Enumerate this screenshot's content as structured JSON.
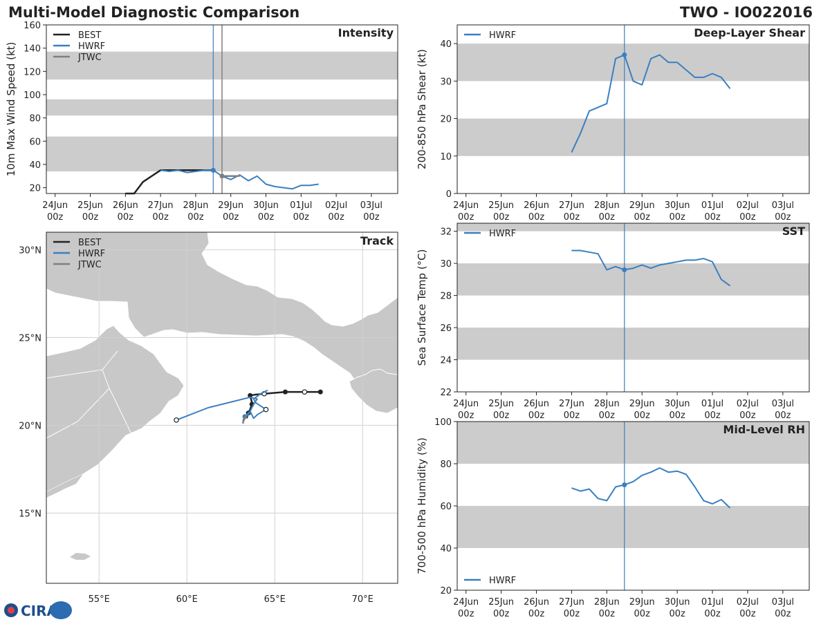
{
  "header": {
    "title": "Multi-Model Diagnostic Comparison",
    "storm_id": "TWO - IO022016"
  },
  "logo_text": "CIRA",
  "colors": {
    "best": "#222222",
    "hwrf": "#3a7fbf",
    "jtwc": "#7f7f7f",
    "band": "#cccccc",
    "land": "#c8c8c8"
  },
  "time_axis": {
    "ticks": [
      {
        "day": 0,
        "top": "24Jun",
        "bottom": "00z"
      },
      {
        "day": 1,
        "top": "25Jun",
        "bottom": "00z"
      },
      {
        "day": 2,
        "top": "26Jun",
        "bottom": "00z"
      },
      {
        "day": 3,
        "top": "27Jun",
        "bottom": "00z"
      },
      {
        "day": 4,
        "top": "28Jun",
        "bottom": "00z"
      },
      {
        "day": 5,
        "top": "29Jun",
        "bottom": "00z"
      },
      {
        "day": 6,
        "top": "30Jun",
        "bottom": "00z"
      },
      {
        "day": 7,
        "top": "01Jul",
        "bottom": "00z"
      },
      {
        "day": 8,
        "top": "02Jul",
        "bottom": "00z"
      },
      {
        "day": 9,
        "top": "03Jul",
        "bottom": "00z"
      }
    ],
    "range_days": [
      -0.25,
      9.75
    ],
    "current_time_day": 4.5,
    "jtwc_time_day": 4.75
  },
  "chart_data": [
    {
      "id": "intensity",
      "type": "line",
      "title": "Intensity",
      "ylabel": "10m Max Wind Speed (kt)",
      "ylim": [
        15,
        160
      ],
      "yticks": [
        20,
        40,
        60,
        80,
        100,
        120,
        140,
        160
      ],
      "bands": [
        [
          34,
          64
        ],
        [
          82,
          96
        ],
        [
          113,
          137
        ]
      ],
      "legend": [
        "BEST",
        "HWRF",
        "JTWC"
      ],
      "series": [
        {
          "name": "BEST",
          "color": "#222222",
          "width": 2.5,
          "x": [
            2.0,
            2.25,
            2.5,
            3.0,
            3.5,
            4.0,
            4.5
          ],
          "y": [
            15,
            15,
            25,
            35,
            35,
            35,
            35
          ]
        },
        {
          "name": "HWRF",
          "color": "#3a7fbf",
          "width": 2,
          "x": [
            3.0,
            3.25,
            3.5,
            3.75,
            4.0,
            4.25,
            4.5,
            4.75,
            5.0,
            5.25,
            5.5,
            5.75,
            6.0,
            6.25,
            6.5,
            6.75,
            7.0,
            7.25,
            7.5
          ],
          "y": [
            35,
            34,
            35,
            33,
            34,
            35,
            35,
            30,
            27,
            31,
            26,
            30,
            23,
            21,
            20,
            19,
            22,
            22,
            23
          ],
          "marker": [
            4.5,
            35
          ]
        },
        {
          "name": "JTWC",
          "color": "#7f7f7f",
          "width": 2.5,
          "x": [
            4.75,
            5.0,
            5.25
          ],
          "y": [
            30,
            30,
            30
          ],
          "marker": [
            4.75,
            30
          ]
        }
      ]
    },
    {
      "id": "shear",
      "type": "line",
      "title": "Deep-Layer Shear",
      "ylabel": "200-850 hPa Shear (kt)",
      "ylim": [
        0,
        45
      ],
      "yticks": [
        0,
        10,
        20,
        30,
        40
      ],
      "bands": [
        [
          10,
          20
        ],
        [
          30,
          40
        ]
      ],
      "legend": [
        "HWRF"
      ],
      "series": [
        {
          "name": "HWRF",
          "color": "#3a7fbf",
          "width": 2,
          "x": [
            3.0,
            3.25,
            3.5,
            3.75,
            4.0,
            4.25,
            4.5,
            4.75,
            5.0,
            5.25,
            5.5,
            5.75,
            6.0,
            6.25,
            6.5,
            6.75,
            7.0,
            7.25,
            7.5
          ],
          "y": [
            11,
            16,
            22,
            23,
            24,
            36,
            37,
            30,
            29,
            36,
            37,
            35,
            35,
            33,
            31,
            31,
            32,
            31,
            28
          ],
          "marker": [
            4.5,
            37
          ]
        }
      ]
    },
    {
      "id": "sst",
      "type": "line",
      "title": "SST",
      "ylabel": "Sea Surface Temp (°C)",
      "ylim": [
        22,
        32.5
      ],
      "yticks": [
        22,
        24,
        26,
        28,
        30,
        32
      ],
      "bands": [
        [
          24,
          26
        ],
        [
          28,
          30
        ],
        [
          32,
          32.5
        ]
      ],
      "legend": [
        "HWRF"
      ],
      "series": [
        {
          "name": "HWRF",
          "color": "#3a7fbf",
          "width": 2,
          "x": [
            3.0,
            3.25,
            3.5,
            3.75,
            4.0,
            4.25,
            4.5,
            4.75,
            5.0,
            5.25,
            5.5,
            5.75,
            6.0,
            6.25,
            6.5,
            6.75,
            7.0,
            7.25,
            7.5
          ],
          "y": [
            30.8,
            30.8,
            30.7,
            30.6,
            29.6,
            29.8,
            29.6,
            29.7,
            29.9,
            29.7,
            29.9,
            30.0,
            30.1,
            30.2,
            30.2,
            30.3,
            30.1,
            29.0,
            28.6
          ],
          "marker": [
            4.5,
            29.6
          ]
        }
      ]
    },
    {
      "id": "rh",
      "type": "line",
      "title": "Mid-Level RH",
      "ylabel": "700-500 hPa Humidity (%)",
      "ylim": [
        20,
        100
      ],
      "yticks": [
        20,
        40,
        60,
        80,
        100
      ],
      "bands": [
        [
          40,
          60
        ],
        [
          80,
          100
        ]
      ],
      "legend": [
        "HWRF"
      ],
      "legend_pos": "bottom-left",
      "series": [
        {
          "name": "HWRF",
          "color": "#3a7fbf",
          "width": 2,
          "x": [
            3.0,
            3.25,
            3.5,
            3.75,
            4.0,
            4.25,
            4.5,
            4.75,
            5.0,
            5.25,
            5.5,
            5.75,
            6.0,
            6.25,
            6.5,
            6.75,
            7.0,
            7.25,
            7.5
          ],
          "y": [
            68.5,
            67,
            68,
            63.5,
            62.5,
            69,
            70,
            71.5,
            74.5,
            76,
            78,
            76,
            76.5,
            75,
            69,
            62.5,
            61,
            63,
            59
          ],
          "marker": [
            4.5,
            70
          ]
        }
      ]
    },
    {
      "id": "track",
      "type": "map",
      "title": "Track",
      "lon_range": [
        52,
        72
      ],
      "lat_range": [
        11,
        31
      ],
      "lon_ticks": [
        55,
        60,
        65,
        70
      ],
      "lon_labels": [
        "55°E",
        "60°E",
        "65°E",
        "70°E"
      ],
      "lat_ticks": [
        15,
        20,
        25,
        30
      ],
      "lat_labels": [
        "15°N",
        "20°N",
        "25°N",
        "30°N"
      ],
      "legend": [
        "BEST",
        "HWRF",
        "JTWC"
      ],
      "tracks": [
        {
          "name": "BEST",
          "color": "#222222",
          "width": 2.5,
          "points": [
            [
              67.6,
              21.9
            ],
            [
              66.7,
              21.9
            ],
            [
              65.6,
              21.9
            ],
            [
              64.4,
              21.8
            ],
            [
              63.9,
              21.75
            ],
            [
              63.6,
              21.7
            ],
            [
              63.7,
              21.3
            ],
            [
              63.7,
              21.2
            ],
            [
              63.6,
              20.9
            ],
            [
              63.5,
              20.7
            ],
            [
              63.4,
              20.4
            ]
          ],
          "filled": [
            0,
            2,
            5,
            7,
            9
          ],
          "open": [
            1,
            3
          ]
        },
        {
          "name": "HWRF",
          "color": "#3a7fbf",
          "width": 2,
          "points": [
            [
              64.6,
              22.0
            ],
            [
              64.2,
              21.8
            ],
            [
              63.8,
              21.5
            ],
            [
              63.9,
              21.3
            ],
            [
              64.5,
              20.9
            ],
            [
              64.0,
              20.6
            ],
            [
              63.8,
              20.4
            ],
            [
              63.6,
              20.8
            ],
            [
              63.3,
              20.5
            ],
            [
              63.2,
              20.3
            ],
            [
              63.3,
              20.5
            ],
            [
              63.5,
              20.6
            ],
            [
              63.8,
              21.2
            ],
            [
              64.0,
              21.5
            ],
            [
              63.6,
              21.6
            ],
            [
              61.2,
              21.0
            ],
            [
              59.4,
              20.3
            ]
          ],
          "filled": [
            8
          ],
          "open": [
            4,
            16
          ]
        },
        {
          "name": "JTWC",
          "color": "#7f7f7f",
          "width": 2.5,
          "points": [
            [
              63.4,
              20.6
            ],
            [
              63.3,
              20.4
            ],
            [
              63.2,
              20.2
            ],
            [
              63.2,
              20.1
            ]
          ],
          "filled": [],
          "open": []
        }
      ]
    }
  ]
}
